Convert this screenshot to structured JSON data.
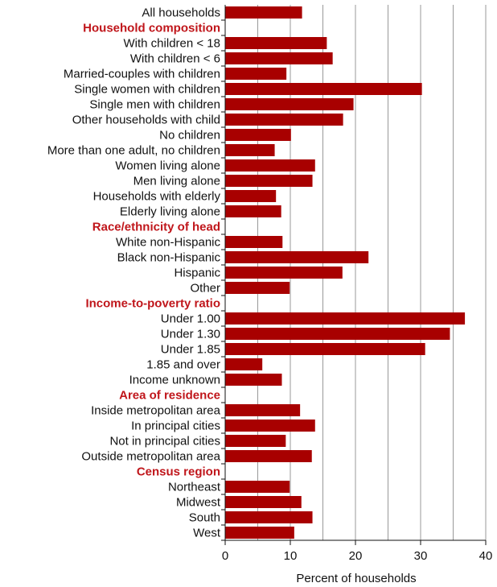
{
  "colors": {
    "bar": "#a80000",
    "section": "#c0161b",
    "grid": "#999999",
    "axis": "#111111"
  },
  "chart_data": {
    "type": "bar",
    "orientation": "horizontal",
    "title": "",
    "xlabel": "Percent of households",
    "ylabel": "",
    "xlim": [
      0,
      40
    ],
    "xticks": [
      0,
      10,
      20,
      30,
      40
    ],
    "grid": "vertical lines at 5-unit intervals",
    "rows": [
      {
        "label": "All households",
        "value": 11.8,
        "kind": "category"
      },
      {
        "label": "Household composition",
        "value": null,
        "kind": "section"
      },
      {
        "label": "With children < 18",
        "value": 15.6,
        "kind": "category"
      },
      {
        "label": "With children < 6",
        "value": 16.5,
        "kind": "category"
      },
      {
        "label": "Married-couples with children",
        "value": 9.4,
        "kind": "category"
      },
      {
        "label": "Single women with children",
        "value": 30.2,
        "kind": "category"
      },
      {
        "label": "Single men with children",
        "value": 19.7,
        "kind": "category"
      },
      {
        "label": "Other households with child",
        "value": 18.1,
        "kind": "category"
      },
      {
        "label": "No children",
        "value": 10.1,
        "kind": "category"
      },
      {
        "label": "More than one adult, no children",
        "value": 7.6,
        "kind": "category"
      },
      {
        "label": "Women living alone",
        "value": 13.8,
        "kind": "category"
      },
      {
        "label": "Men living alone",
        "value": 13.4,
        "kind": "category"
      },
      {
        "label": "Households with elderly",
        "value": 7.8,
        "kind": "category"
      },
      {
        "label": "Elderly living alone",
        "value": 8.6,
        "kind": "category"
      },
      {
        "label": "Race/ethnicity of head",
        "value": null,
        "kind": "section"
      },
      {
        "label": "White non-Hispanic",
        "value": 8.8,
        "kind": "category"
      },
      {
        "label": "Black non-Hispanic",
        "value": 22.0,
        "kind": "category"
      },
      {
        "label": "Hispanic",
        "value": 18.0,
        "kind": "category"
      },
      {
        "label": "Other",
        "value": 9.9,
        "kind": "category"
      },
      {
        "label": "Income-to-poverty ratio",
        "value": null,
        "kind": "section"
      },
      {
        "label": "Under 1.00",
        "value": 36.8,
        "kind": "category"
      },
      {
        "label": "Under 1.30",
        "value": 34.5,
        "kind": "category"
      },
      {
        "label": "Under 1.85",
        "value": 30.7,
        "kind": "category"
      },
      {
        "label": "1.85 and over",
        "value": 5.7,
        "kind": "category"
      },
      {
        "label": "Income unknown",
        "value": 8.7,
        "kind": "category"
      },
      {
        "label": "Area of residence",
        "value": null,
        "kind": "section"
      },
      {
        "label": "Inside metropolitan area",
        "value": 11.5,
        "kind": "category"
      },
      {
        "label": "In principal cities",
        "value": 13.8,
        "kind": "category"
      },
      {
        "label": "Not in principal cities",
        "value": 9.3,
        "kind": "category"
      },
      {
        "label": "Outside metropolitan area",
        "value": 13.3,
        "kind": "category"
      },
      {
        "label": "Census region",
        "value": null,
        "kind": "section"
      },
      {
        "label": "Northeast",
        "value": 9.9,
        "kind": "category"
      },
      {
        "label": "Midwest",
        "value": 11.7,
        "kind": "category"
      },
      {
        "label": "South",
        "value": 13.4,
        "kind": "category"
      },
      {
        "label": "West",
        "value": 10.6,
        "kind": "category"
      }
    ]
  }
}
